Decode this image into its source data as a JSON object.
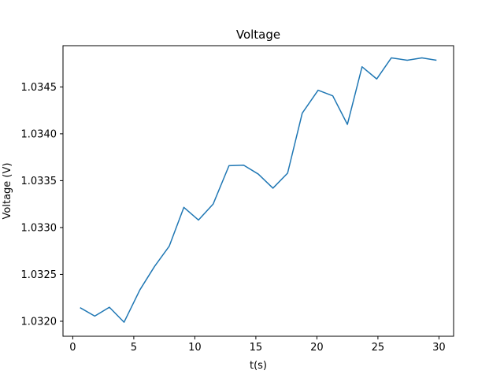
{
  "chart_data": {
    "type": "line",
    "title": "Voltage",
    "xlabel": "t(s)",
    "ylabel": "Voltage (V)",
    "xlim": [
      -0.8,
      31.2
    ],
    "ylim": [
      1.03184,
      1.03494
    ],
    "x_ticks": [
      0,
      5,
      10,
      15,
      20,
      25,
      30
    ],
    "x_tick_labels": [
      "0",
      "5",
      "10",
      "15",
      "20",
      "25",
      "30"
    ],
    "y_ticks": [
      1.032,
      1.0325,
      1.033,
      1.0335,
      1.034,
      1.0345
    ],
    "y_tick_labels": [
      "1.0320",
      "1.0325",
      "1.0330",
      "1.0335",
      "1.0340",
      "1.0345"
    ],
    "grid": false,
    "series": [
      {
        "color": "#1f77b4",
        "x": [
          0.6,
          1.8,
          3.0,
          4.2,
          5.5,
          6.7,
          7.9,
          9.1,
          10.3,
          11.5,
          12.8,
          14.0,
          15.2,
          16.4,
          17.6,
          18.8,
          20.1,
          21.3,
          22.5,
          23.7,
          24.9,
          26.1,
          27.4,
          28.6,
          29.8
        ],
        "y": [
          1.032145,
          1.032055,
          1.03215,
          1.03199,
          1.032335,
          1.032585,
          1.0328,
          1.033215,
          1.03308,
          1.03325,
          1.03366,
          1.033665,
          1.03357,
          1.03342,
          1.03358,
          1.03422,
          1.034465,
          1.034405,
          1.0341,
          1.034715,
          1.034585,
          1.03481,
          1.034785,
          1.03481,
          1.034785
        ]
      }
    ]
  }
}
